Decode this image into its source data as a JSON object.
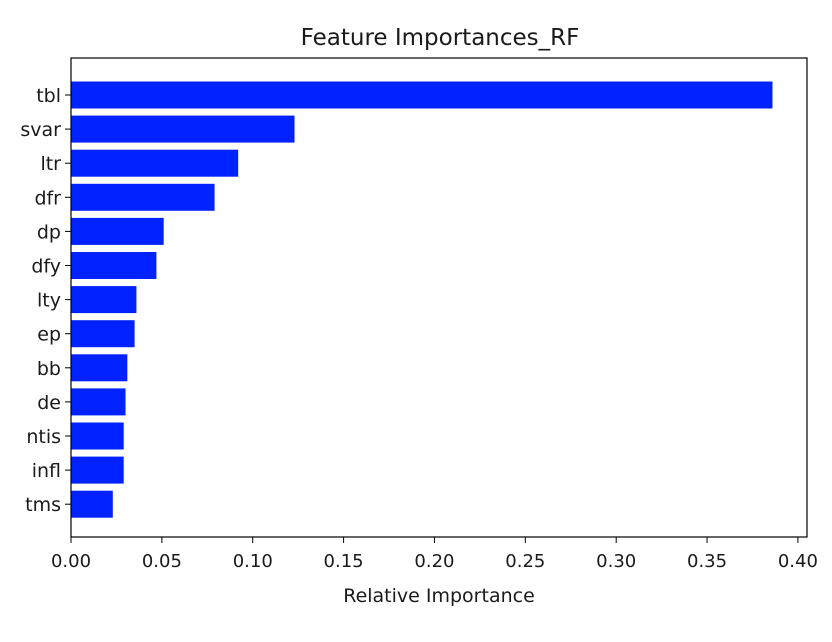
{
  "chart_data": {
    "type": "bar",
    "orientation": "horizontal",
    "title": "Feature Importances_RF",
    "xlabel": "Relative Importance",
    "ylabel": "",
    "categories": [
      "tbl",
      "svar",
      "ltr",
      "dfr",
      "dp",
      "dfy",
      "lty",
      "ep",
      "bb",
      "de",
      "ntis",
      "infl",
      "tms"
    ],
    "values": [
      0.386,
      0.123,
      0.092,
      0.079,
      0.051,
      0.047,
      0.036,
      0.035,
      0.031,
      0.03,
      0.029,
      0.029,
      0.023
    ],
    "xlim": [
      0.0,
      0.405
    ],
    "xticks": [
      "0.00",
      "0.05",
      "0.10",
      "0.15",
      "0.20",
      "0.25",
      "0.30",
      "0.35",
      "0.40"
    ],
    "bar_color": "#0022ff",
    "grid": false,
    "legend": "none"
  }
}
